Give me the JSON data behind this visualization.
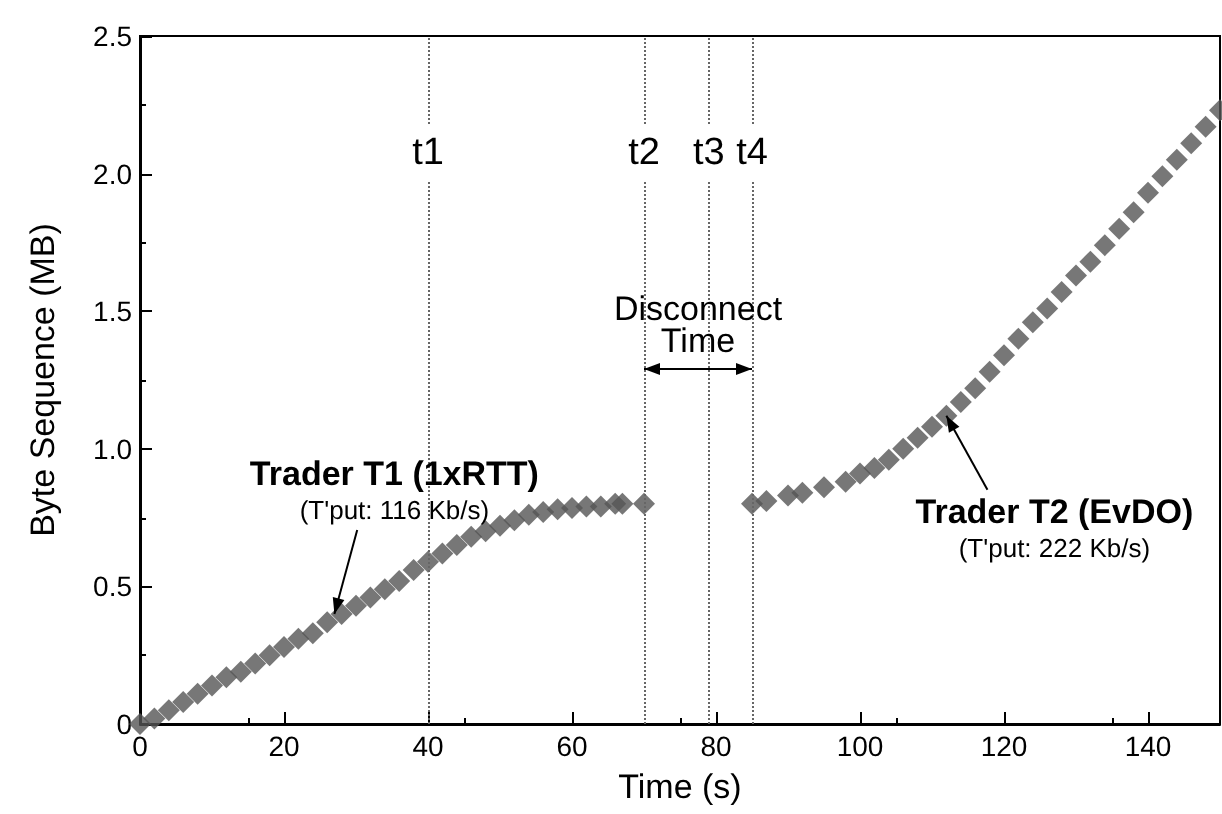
{
  "chart_data": {
    "type": "scatter",
    "xlabel": "Time (s)",
    "ylabel": "Byte Sequence (MB)",
    "xlim": [
      0,
      150
    ],
    "xticks": [
      0,
      20,
      40,
      60,
      80,
      100,
      120,
      140
    ],
    "ylim": [
      0,
      2.5
    ],
    "yticks": [
      0,
      0.5,
      {
        "value": 1,
        "label": "1.0"
      },
      1.5,
      {
        "value": 2,
        "label": "2.0"
      },
      2.5
    ],
    "grid": false,
    "marker": "diamond",
    "series": [
      {
        "color": "#555555",
        "x": [
          0,
          2,
          4,
          6,
          8,
          10,
          12,
          14,
          16,
          18,
          20,
          22,
          24,
          26,
          28,
          30,
          32,
          34,
          36,
          38,
          40,
          42,
          44,
          46,
          48,
          50,
          52,
          54,
          56,
          58,
          60,
          62,
          64,
          66,
          67,
          70
        ],
        "values": [
          0,
          0.02,
          0.05,
          0.08,
          0.11,
          0.14,
          0.17,
          0.19,
          0.22,
          0.25,
          0.28,
          0.31,
          0.33,
          0.37,
          0.4,
          0.43,
          0.46,
          0.49,
          0.52,
          0.56,
          0.59,
          0.62,
          0.65,
          0.68,
          0.7,
          0.72,
          0.74,
          0.76,
          0.77,
          0.78,
          0.785,
          0.79,
          0.79,
          0.8,
          0.8,
          0.8
        ]
      },
      {
        "color": "#555555",
        "x": [
          85,
          87,
          90,
          92,
          95,
          98,
          100,
          102,
          104,
          106,
          108,
          110,
          112,
          114,
          116,
          118,
          120,
          122,
          124,
          126,
          128,
          130,
          132,
          134,
          136,
          138,
          140,
          142,
          144,
          146,
          148,
          150
        ],
        "values": [
          0.8,
          0.81,
          0.83,
          0.84,
          0.86,
          0.88,
          0.91,
          0.93,
          0.96,
          1.0,
          1.04,
          1.08,
          1.12,
          1.17,
          1.22,
          1.28,
          1.34,
          1.4,
          1.46,
          1.51,
          1.57,
          1.63,
          1.68,
          1.74,
          1.8,
          1.86,
          1.93,
          1.99,
          2.05,
          2.11,
          2.17,
          2.23
        ]
      }
    ],
    "ref_lines": [
      {
        "axis": "x",
        "value": 40,
        "label": "t1"
      },
      {
        "axis": "x",
        "value": 70,
        "label": "t2"
      },
      {
        "axis": "x",
        "value": 79,
        "label": "t3"
      },
      {
        "axis": "x",
        "value": 85,
        "label": "t4"
      }
    ],
    "annotations": [
      {
        "text": "Trader T1 (1xRTT)",
        "x": 27,
        "y": 0.4
      },
      "(T'put: 116 Kb/s)",
      {
        "text": "Trader T2 (EvDO)",
        "x": 112,
        "y": 1.12
      },
      "(T'put: 222 Kb/s)",
      {
        "text": "Disconnect\nTime",
        "x": 77.5,
        "y": 1.45
      }
    ]
  }
}
